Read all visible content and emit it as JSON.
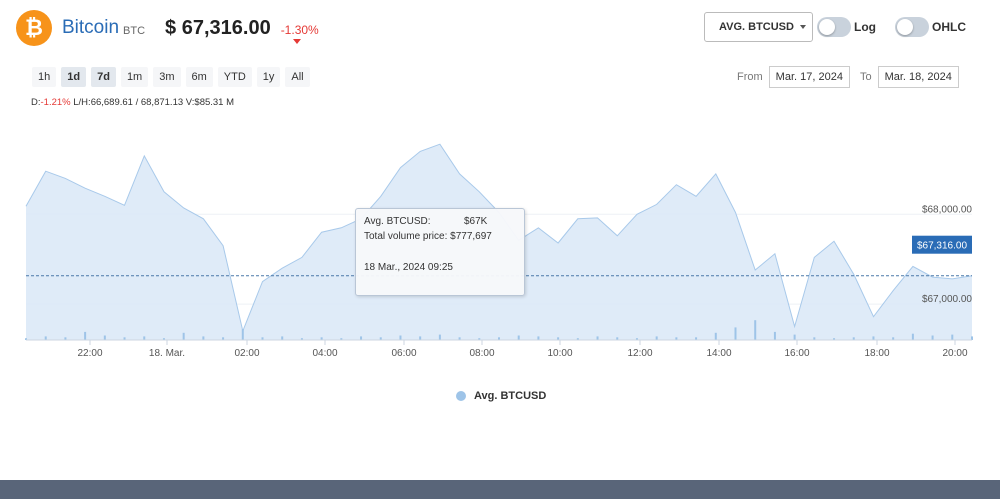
{
  "coin": {
    "logo_glyph": "₿",
    "name": "Bitcoin",
    "symbol": "BTC",
    "price": "$ 67,316.00",
    "change": "-1.30%"
  },
  "controls": {
    "currency_select": "AVG. BTCUSD",
    "log_label": "Log",
    "ohlc_label": "OHLC",
    "ranges": [
      "1h",
      "1d",
      "7d",
      "1m",
      "3m",
      "6m",
      "YTD",
      "1y",
      "All"
    ],
    "active_ranges": [
      "1d",
      "7d"
    ],
    "from_label": "From",
    "from_value": "Mar. 17, 2024",
    "to_label": "To",
    "to_value": "Mar. 18, 2024"
  },
  "stats": {
    "d_label": "D:",
    "d_value": "-1.21%",
    "lh_label": "L/H:",
    "lh_value": "66,689.61 / 68,871.13",
    "v_label": "V:",
    "v_value": "$85.31 M"
  },
  "tooltip": {
    "k1": "Avg. BTCUSD:",
    "v1": "$67K",
    "k2": "Total volume price:",
    "v2": "$777,697",
    "time": "18 Mar., 2024 09:25"
  },
  "legend": {
    "label": "Avg. BTCUSD"
  },
  "colors": {
    "accent": "#2a6cb6",
    "negative": "#e53935",
    "area_fill": "#d9e8f7",
    "line": "#a8c9ea",
    "bitcoin": "#f7931a",
    "footer": "#596579"
  },
  "chart_data": {
    "type": "area",
    "title": "",
    "xlabel": "",
    "ylabel": "",
    "x_ticks": [
      "22:00",
      "18. Mar.",
      "02:00",
      "04:00",
      "06:00",
      "08:00",
      "10:00",
      "12:00",
      "14:00",
      "16:00",
      "18:00",
      "20:00"
    ],
    "y_ticks": [
      "$68,000.00",
      "$67,000.00"
    ],
    "current_price_label": "$67,316.00",
    "current_price": 67316,
    "ylim": [
      66600,
      69050
    ],
    "series": [
      {
        "name": "Avg. BTCUSD",
        "x": [
          "20:30",
          "21:00",
          "21:30",
          "22:00",
          "22:30",
          "23:00",
          "23:30",
          "00:00",
          "00:30",
          "01:00",
          "01:30",
          "02:00",
          "02:30",
          "03:00",
          "03:30",
          "04:00",
          "04:30",
          "05:00",
          "05:30",
          "06:00",
          "06:30",
          "07:00",
          "07:30",
          "08:00",
          "08:30",
          "09:00",
          "09:30",
          "10:00",
          "10:30",
          "11:00",
          "11:30",
          "12:00",
          "12:30",
          "13:00",
          "13:30",
          "14:00",
          "14:30",
          "15:00",
          "15:30",
          "16:00",
          "16:30",
          "17:00",
          "17:30",
          "18:00",
          "18:30",
          "19:00",
          "19:30",
          "20:00",
          "20:30"
        ],
        "values": [
          68090,
          68480,
          68400,
          68290,
          68200,
          68100,
          68650,
          68250,
          68070,
          67950,
          67650,
          66700,
          67250,
          67400,
          67520,
          67800,
          67850,
          67950,
          68200,
          68520,
          68700,
          68780,
          68450,
          68250,
          68020,
          67710,
          67850,
          67680,
          67950,
          67960,
          67760,
          68000,
          68110,
          68330,
          68200,
          68450,
          68020,
          67380,
          67560,
          66750,
          67520,
          67700,
          67330,
          66860,
          67150,
          67420,
          67300,
          67280,
          67316
        ]
      }
    ],
    "volume": [
      2,
      4,
      3,
      9,
      5,
      3,
      4,
      2,
      8,
      4,
      3,
      12,
      3,
      4,
      2,
      3,
      2,
      4,
      3,
      5,
      4,
      6,
      3,
      2,
      3,
      5,
      4,
      3,
      2,
      4,
      3,
      2,
      4,
      3,
      3,
      8,
      14,
      22,
      9,
      6,
      3,
      2,
      3,
      4,
      3,
      7,
      5,
      6,
      4
    ]
  }
}
